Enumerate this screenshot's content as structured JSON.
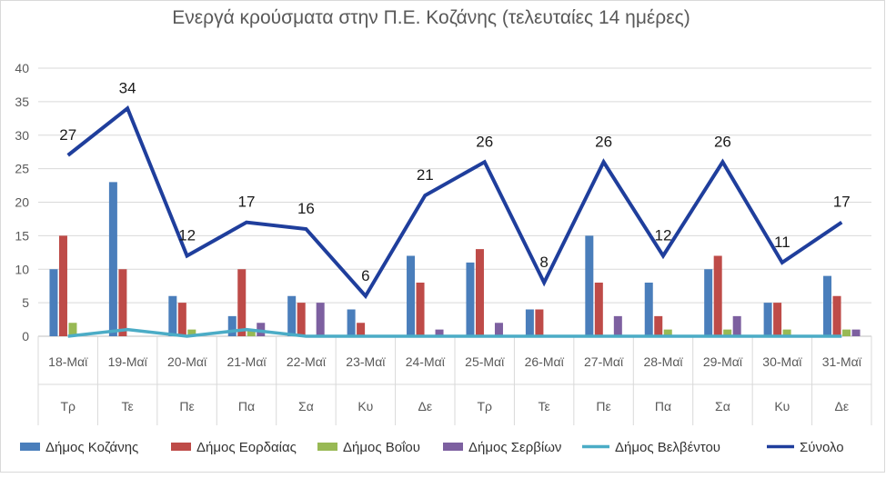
{
  "chart_data": {
    "type": "bar",
    "title": "Ενεργά κρούσματα στην Π.Ε. Κοζάνης (τελευταίες 14 ημέρες)",
    "xlabel": "",
    "ylabel": "",
    "ylim": [
      0,
      40
    ],
    "yticks": [
      0,
      5,
      10,
      15,
      20,
      25,
      30,
      35,
      40
    ],
    "grid": true,
    "legend_position": "bottom",
    "categories": [
      "18-Μαϊ",
      "19-Μαϊ",
      "20-Μαϊ",
      "21-Μαϊ",
      "22-Μαϊ",
      "23-Μαϊ",
      "24-Μαϊ",
      "25-Μαϊ",
      "26-Μαϊ",
      "27-Μαϊ",
      "28-Μαϊ",
      "29-Μαϊ",
      "30-Μαϊ",
      "31-Μαϊ"
    ],
    "days": [
      "Τρ",
      "Τε",
      "Πε",
      "Πα",
      "Σα",
      "Κυ",
      "Δε",
      "Τρ",
      "Τε",
      "Πε",
      "Πα",
      "Σα",
      "Κυ",
      "Δε"
    ],
    "series": [
      {
        "name": "Δήμος Κοζάνης",
        "kind": "bar",
        "color": "#4a7ebb",
        "values": [
          10,
          23,
          6,
          3,
          6,
          4,
          12,
          11,
          4,
          15,
          8,
          10,
          5,
          9
        ]
      },
      {
        "name": "Δήμος Εορδαίας",
        "kind": "bar",
        "color": "#be4b48",
        "values": [
          15,
          10,
          5,
          10,
          5,
          2,
          8,
          13,
          4,
          8,
          3,
          12,
          5,
          6
        ]
      },
      {
        "name": "Δήμος Βοΐου",
        "kind": "bar",
        "color": "#98b954",
        "values": [
          2,
          0,
          1,
          1,
          0,
          0,
          0,
          0,
          0,
          0,
          1,
          1,
          1,
          1
        ]
      },
      {
        "name": "Δήμος Σερβίων",
        "kind": "bar",
        "color": "#7d60a0",
        "values": [
          0,
          0,
          0,
          2,
          5,
          0,
          1,
          2,
          0,
          3,
          0,
          3,
          0,
          1
        ]
      },
      {
        "name": "Δήμος Βελβέντου",
        "kind": "line",
        "color": "#4bacc6",
        "values": [
          0,
          1,
          0,
          1,
          0,
          0,
          0,
          0,
          0,
          0,
          0,
          0,
          0,
          0
        ]
      },
      {
        "name": "Σύνολο",
        "kind": "line",
        "color": "#1f3e9c",
        "values": [
          27,
          34,
          12,
          17,
          16,
          6,
          21,
          26,
          8,
          26,
          12,
          26,
          11,
          17
        ],
        "data_labels": true
      }
    ]
  }
}
